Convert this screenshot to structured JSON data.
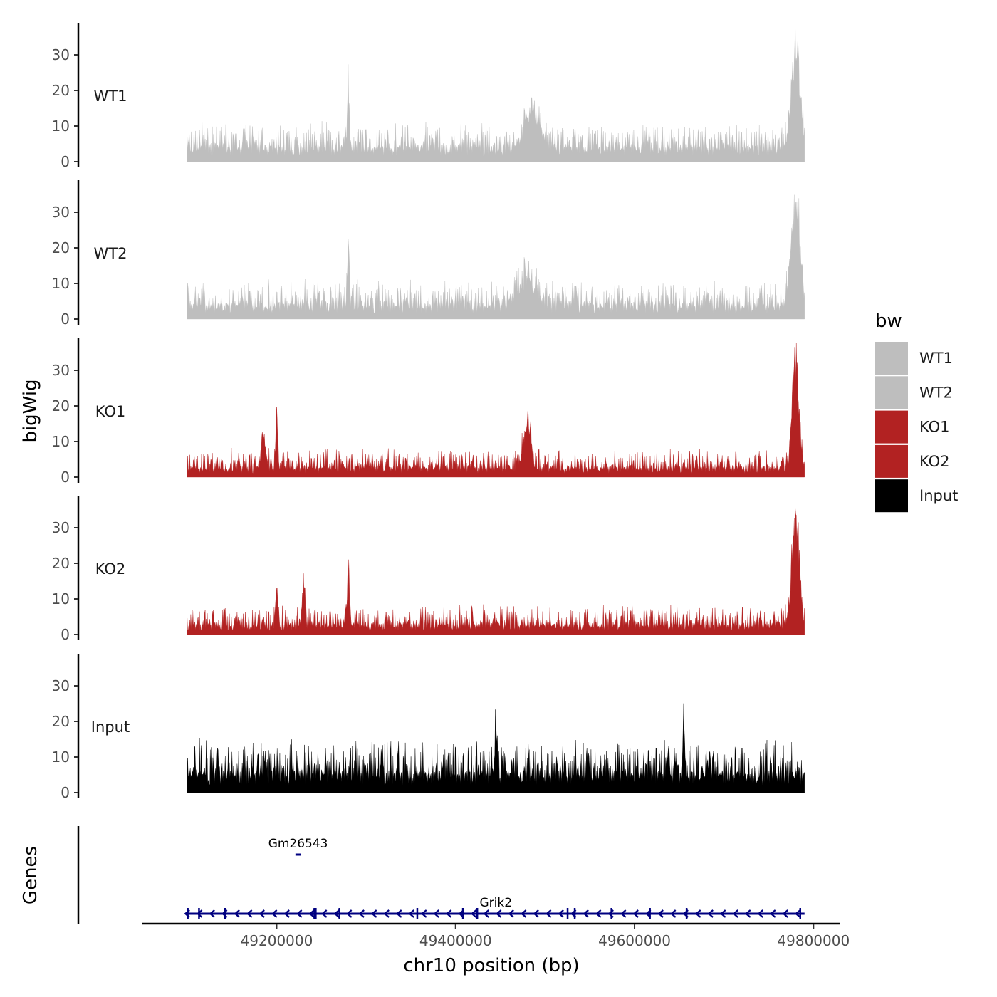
{
  "chart_data": {
    "type": "area",
    "ylabel": "bigWig",
    "xlabel": "chr10 position (bp)",
    "xlim": [
      49050000,
      49830000
    ],
    "data_range": [
      49100000,
      49790000
    ],
    "x_ticks": [
      49200000,
      49400000,
      49600000,
      49800000
    ],
    "x_tick_labels": [
      "49200000",
      "49400000",
      "49600000",
      "49800000"
    ],
    "ylim": [
      0,
      40
    ],
    "y_ticks": [
      0,
      10,
      20,
      30
    ],
    "y_tick_labels": [
      "0",
      "10",
      "20",
      "30"
    ],
    "legend": {
      "title": "bw",
      "position": "right",
      "entries": [
        {
          "label": "WT1",
          "color": "#bebebe"
        },
        {
          "label": "WT2",
          "color": "#bebebe"
        },
        {
          "label": "KO1",
          "color": "#b22222"
        },
        {
          "label": "KO2",
          "color": "#b22222"
        },
        {
          "label": "Input",
          "color": "#000000"
        }
      ]
    },
    "series": [
      {
        "name": "WT1",
        "color": "#bebebe",
        "baseline": 3,
        "noise": 5,
        "peaks": [
          {
            "x": 49280000,
            "y": 21,
            "w": 1500
          },
          {
            "x": 49485000,
            "y": 12,
            "w": 12000
          },
          {
            "x": 49780000,
            "y": 31,
            "w": 7000
          }
        ]
      },
      {
        "name": "WT2",
        "color": "#bebebe",
        "baseline": 3,
        "noise": 5,
        "peaks": [
          {
            "x": 49280000,
            "y": 19,
            "w": 1500
          },
          {
            "x": 49480000,
            "y": 9,
            "w": 14000
          },
          {
            "x": 49780000,
            "y": 32,
            "w": 7000
          }
        ]
      },
      {
        "name": "KO1",
        "color": "#b22222",
        "baseline": 2,
        "noise": 4,
        "peaks": [
          {
            "x": 49185000,
            "y": 11,
            "w": 3500
          },
          {
            "x": 49200000,
            "y": 20,
            "w": 1500
          },
          {
            "x": 49480000,
            "y": 14,
            "w": 6000
          },
          {
            "x": 49780000,
            "y": 37,
            "w": 5000
          }
        ]
      },
      {
        "name": "KO2",
        "color": "#b22222",
        "baseline": 2,
        "noise": 4,
        "peaks": [
          {
            "x": 49200000,
            "y": 12,
            "w": 2000
          },
          {
            "x": 49230000,
            "y": 15,
            "w": 2000
          },
          {
            "x": 49280000,
            "y": 18,
            "w": 1500
          },
          {
            "x": 49780000,
            "y": 34,
            "w": 6000
          }
        ]
      },
      {
        "name": "Input",
        "color": "#000000",
        "baseline": 4,
        "noise": 7,
        "peaks": [
          {
            "x": 49445000,
            "y": 16,
            "w": 1500
          },
          {
            "x": 49655000,
            "y": 15,
            "w": 1500
          }
        ]
      }
    ],
    "genes_track_label": "Genes",
    "genes": [
      {
        "name": "Gm26543",
        "start": 49221000,
        "end": 49227000,
        "strand": "-",
        "color": "#000080",
        "row": 1
      },
      {
        "name": "Grik2",
        "start": 49100000,
        "end": 49790000,
        "strand": "-",
        "color": "#000080",
        "row": 2,
        "exons": [
          49100500,
          49113000,
          49142000,
          49242000,
          49243500,
          49270000,
          49357000,
          49408000,
          49424000,
          49525000,
          49533000,
          49574000,
          49617000,
          49658000,
          49785000
        ]
      }
    ]
  }
}
